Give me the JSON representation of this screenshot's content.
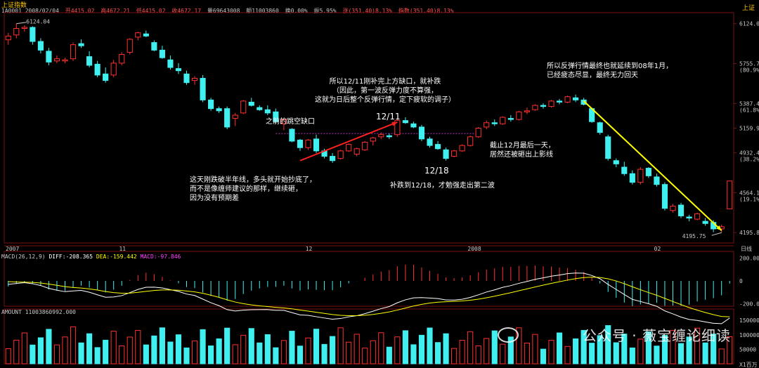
{
  "header": {
    "title": "上证指数",
    "right_label": "上证",
    "info": {
      "code_date": "1A0001 2008/02/04",
      "open": "开4415.02",
      "high": "高4672.21",
      "low": "低4415.02",
      "close": "收4672.17",
      "volume": "量69643008",
      "amount": "额11003860",
      "turnover": "换0.00%",
      "amplitude": "振5.95%",
      "change": "涨(351.40)8.13%",
      "index": "指数(351.40)8.13%"
    }
  },
  "price_axis": [
    {
      "v": 6124.0,
      "label": "6124.0",
      "sub": ""
    },
    {
      "v": 5755.7,
      "label": "5755.7",
      "sub": "(80.9%)"
    },
    {
      "v": 5387.4,
      "label": "5387.4",
      "sub": "(61.8%)"
    },
    {
      "v": 5159.9,
      "label": "5159.9",
      "sub": ""
    },
    {
      "v": 4932.4,
      "label": "4932.4",
      "sub": "(38.2%)"
    },
    {
      "v": 4564.1,
      "label": "4564.1",
      "sub": "(19.1%)"
    },
    {
      "v": 4195.8,
      "label": "4195.8",
      "sub": ""
    }
  ],
  "time_labels": [
    {
      "i": 0,
      "label": "2007"
    },
    {
      "i": 14,
      "label": "11"
    },
    {
      "i": 37,
      "label": "12"
    },
    {
      "i": 57,
      "label": "2008"
    },
    {
      "i": 80,
      "label": "02"
    }
  ],
  "period_label": "日线",
  "high_marker": "6124.04",
  "low_marker": "4195.75",
  "macd": {
    "label_prefix": "MACD(26,12,9)",
    "diff": "DIFF:-208.365",
    "dea": "DEA:-159.442",
    "macd": "MACD:-97.846",
    "axis": [
      "200.00",
      "0",
      "-200.00"
    ]
  },
  "amount": {
    "label": "AMOUNT 11003860992.000",
    "axis": [
      "150000",
      "100000",
      "50000"
    ],
    "unit": "X1百万"
  },
  "chart_data": {
    "type": "candlestick",
    "title": "上证指数",
    "ylim": [
      4100,
      6200
    ],
    "candles": [
      [
        5975,
        6040,
        5930,
        6010
      ],
      [
        6020,
        6124,
        5990,
        6080
      ],
      [
        6080,
        6110,
        6050,
        6090
      ],
      [
        6090,
        6100,
        5930,
        5960
      ],
      [
        5960,
        5990,
        5850,
        5880
      ],
      [
        5870,
        5900,
        5740,
        5770
      ],
      [
        5780,
        5830,
        5760,
        5800
      ],
      [
        5780,
        5810,
        5760,
        5790
      ],
      [
        5800,
        5950,
        5780,
        5930
      ],
      [
        5940,
        5980,
        5900,
        5920
      ],
      [
        5820,
        5870,
        5720,
        5740
      ],
      [
        5750,
        5780,
        5630,
        5650
      ],
      [
        5660,
        5720,
        5580,
        5600
      ],
      [
        5650,
        5790,
        5630,
        5760
      ],
      [
        5760,
        5860,
        5740,
        5840
      ],
      [
        5860,
        5990,
        5840,
        5980
      ],
      [
        6000,
        6050,
        5970,
        6040
      ],
      [
        6030,
        6060,
        6000,
        6010
      ],
      [
        5950,
        5970,
        5870,
        5880
      ],
      [
        5880,
        5920,
        5800,
        5810
      ],
      [
        5790,
        5830,
        5700,
        5720
      ],
      [
        5710,
        5760,
        5660,
        5690
      ],
      [
        5660,
        5690,
        5560,
        5580
      ],
      [
        5600,
        5640,
        5560,
        5620
      ],
      [
        5620,
        5650,
        5400,
        5420
      ],
      [
        5420,
        5440,
        5320,
        5340
      ],
      [
        5340,
        5360,
        5300,
        5320
      ],
      [
        5340,
        5360,
        5150,
        5170
      ],
      [
        5250,
        5300,
        5180,
        5280
      ],
      [
        5300,
        5420,
        5290,
        5410
      ],
      [
        5400,
        5440,
        5360,
        5370
      ],
      [
        5350,
        5370,
        5320,
        5330
      ],
      [
        5330,
        5370,
        5280,
        5300
      ],
      [
        5310,
        5340,
        5200,
        5220
      ],
      [
        5200,
        5250,
        5140,
        5240
      ],
      [
        5150,
        5160,
        5030,
        5040
      ],
      [
        5050,
        5060,
        4950,
        4980
      ],
      [
        4980,
        5060,
        4960,
        5050
      ],
      [
        5060,
        5100,
        4930,
        4950
      ],
      [
        4950,
        4970,
        4880,
        4900
      ],
      [
        4900,
        4930,
        4840,
        4860
      ],
      [
        4880,
        4960,
        4870,
        4950
      ],
      [
        4950,
        5020,
        4940,
        5010
      ],
      [
        4920,
        4980,
        4900,
        4970
      ],
      [
        4960,
        5040,
        4950,
        5030
      ],
      [
        5040,
        5080,
        5000,
        5070
      ],
      [
        5080,
        5120,
        5060,
        5100
      ],
      [
        5090,
        5110,
        5060,
        5080
      ],
      [
        5100,
        5250,
        5080,
        5230
      ],
      [
        5230,
        5260,
        5200,
        5210
      ],
      [
        5200,
        5220,
        5160,
        5170
      ],
      [
        5170,
        5190,
        5040,
        5060
      ],
      [
        5060,
        5080,
        4980,
        5000
      ],
      [
        5010,
        5040,
        4960,
        4970
      ],
      [
        4960,
        4980,
        4860,
        4880
      ],
      [
        4900,
        4960,
        4890,
        4950
      ],
      [
        4950,
        5010,
        4940,
        5000
      ],
      [
        5000,
        5090,
        4990,
        5080
      ],
      [
        5080,
        5170,
        5070,
        5160
      ],
      [
        5170,
        5230,
        5150,
        5210
      ],
      [
        5210,
        5240,
        5180,
        5200
      ],
      [
        5200,
        5270,
        5190,
        5260
      ],
      [
        5250,
        5280,
        5220,
        5240
      ],
      [
        5240,
        5320,
        5230,
        5310
      ],
      [
        5310,
        5350,
        5290,
        5320
      ],
      [
        5330,
        5380,
        5320,
        5370
      ],
      [
        5370,
        5390,
        5340,
        5360
      ],
      [
        5360,
        5420,
        5350,
        5410
      ],
      [
        5410,
        5430,
        5380,
        5400
      ],
      [
        5400,
        5460,
        5390,
        5450
      ],
      [
        5440,
        5470,
        5400,
        5420
      ],
      [
        5420,
        5440,
        5370,
        5380
      ],
      [
        5340,
        5350,
        5210,
        5220
      ],
      [
        5210,
        5220,
        5100,
        5120
      ],
      [
        5080,
        5100,
        4860,
        4880
      ],
      [
        4860,
        4880,
        4800,
        4830
      ],
      [
        4800,
        4850,
        4720,
        4740
      ],
      [
        4740,
        4770,
        4640,
        4660
      ],
      [
        4660,
        4800,
        4640,
        4780
      ],
      [
        4790,
        4800,
        4700,
        4720
      ],
      [
        4710,
        4740,
        4620,
        4640
      ],
      [
        4640,
        4660,
        4400,
        4420
      ],
      [
        4400,
        4460,
        4380,
        4440
      ],
      [
        4450,
        4470,
        4330,
        4350
      ],
      [
        4340,
        4360,
        4300,
        4330
      ],
      [
        4320,
        4380,
        4310,
        4370
      ],
      [
        4300,
        4330,
        4260,
        4280
      ],
      [
        4290,
        4310,
        4200,
        4230
      ],
      [
        4230,
        4270,
        4196,
        4250
      ],
      [
        4415,
        4672,
        4415,
        4672
      ]
    ],
    "high": 6124.04,
    "low": 4195.75
  },
  "annotations": [
    {
      "key": "gap",
      "text": "之前的跳空缺口",
      "color": "#ffffff"
    },
    {
      "key": "half",
      "text": "这天刚跌破半年线，多头就开始抄底了，\n而不是像缠师建议的那样，继续砸，\n因为没有预期差",
      "color": "#ffffff"
    },
    {
      "key": "d1211",
      "text": "所以12/11刚补完上方缺口，就补跌\n（因此，第一波反弹力度不算强，\n这就为日后整个反弹行情，定下疲软的调子）",
      "color": "#ffffff"
    },
    {
      "key": "lbl1211",
      "text": "12/11",
      "color": "#ffffff"
    },
    {
      "key": "lbl1218",
      "text": "12/18",
      "color": "#ffffff"
    },
    {
      "key": "d1218",
      "text": "补跌到12/18，才勉强走出第二波",
      "color": "#ffffff"
    },
    {
      "key": "dec",
      "text": "截止12月最后一天，\n居然还被砸出上影线",
      "color": "#ffffff"
    },
    {
      "key": "jan",
      "text": "所以反弹行情最终也就延续到08年1月，\n已经疲态尽显，最终无力回天",
      "color": "#ffffff"
    }
  ],
  "watermark": "公众号 · 薇宝缠论细读",
  "colors": {
    "up": "#ff3030",
    "down": "#40f0f0",
    "red_arrow": "#ff2020",
    "yellow_arrow": "#ffff00",
    "purple": "#c030c0",
    "grid": "#7a1010"
  }
}
